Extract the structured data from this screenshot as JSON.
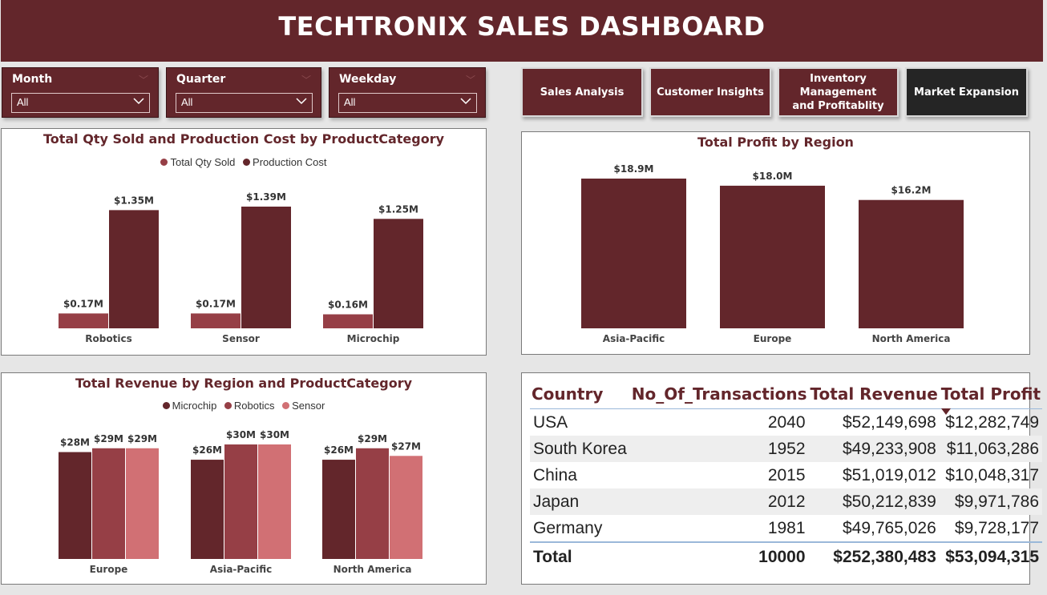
{
  "header": {
    "title": "TECHTRONIX SALES DASHBOARD"
  },
  "slicers": [
    {
      "title": "Month",
      "value": "All"
    },
    {
      "title": "Quarter",
      "value": "All"
    },
    {
      "title": "Weekday",
      "value": "All"
    }
  ],
  "nav": [
    {
      "label": "Sales Analysis",
      "active": false
    },
    {
      "label": "Customer Insights",
      "active": false
    },
    {
      "label": "Inventory Management and Profitablity",
      "active": false
    },
    {
      "label": "Market Expansion",
      "active": true
    }
  ],
  "chart_data": [
    {
      "type": "bar",
      "title": "Total Qty Sold and Production Cost by ProductCategory",
      "categories": [
        "Robotics",
        "Sensor",
        "Microchip"
      ],
      "series": [
        {
          "name": "Total Qty Sold",
          "values": [
            0.17,
            0.17,
            0.16
          ],
          "labels": [
            "$0.17M",
            "$0.17M",
            "$0.16M"
          ],
          "color": "#963f46"
        },
        {
          "name": "Production Cost",
          "values": [
            1.35,
            1.39,
            1.25
          ],
          "labels": [
            "$1.35M",
            "$1.39M",
            "$1.25M"
          ],
          "color": "#63262b"
        }
      ]
    },
    {
      "type": "bar",
      "title": "Total Profit by Region",
      "categories": [
        "Asia-Pacific",
        "Europe",
        "North America"
      ],
      "series": [
        {
          "name": "Total Profit",
          "values": [
            18.9,
            18.0,
            16.2
          ],
          "labels": [
            "$18.9M",
            "$18.0M",
            "$16.2M"
          ],
          "color": "#63262b"
        }
      ]
    },
    {
      "type": "bar",
      "title": "Total Revenue by Region and ProductCategory",
      "categories": [
        "Europe",
        "Asia-Pacific",
        "North America"
      ],
      "series": [
        {
          "name": "Microchip",
          "values": [
            28,
            26,
            26
          ],
          "labels": [
            "$28M",
            "$26M",
            "$26M"
          ],
          "color": "#63262b"
        },
        {
          "name": "Robotics",
          "values": [
            29,
            30,
            29
          ],
          "labels": [
            "$29M",
            "$30M",
            "$29M"
          ],
          "color": "#963f46"
        },
        {
          "name": "Sensor",
          "values": [
            29,
            30,
            27
          ],
          "labels": [
            "$29M",
            "$30M",
            "$27M"
          ],
          "color": "#d17074"
        }
      ]
    }
  ],
  "table": {
    "columns": [
      "Country",
      "No_Of_Transactions",
      "Total Revenue",
      "Total Profit"
    ],
    "rows": [
      [
        "USA",
        "2040",
        "$52,149,698",
        "$12,282,749"
      ],
      [
        "South Korea",
        "1952",
        "$49,233,908",
        "$11,063,286"
      ],
      [
        "China",
        "2015",
        "$51,019,012",
        "$10,048,317"
      ],
      [
        "Japan",
        "2012",
        "$50,212,839",
        "$9,971,786"
      ],
      [
        "Germany",
        "1981",
        "$49,765,026",
        "$9,728,177"
      ]
    ],
    "total": [
      "Total",
      "10000",
      "$252,380,483",
      "$53,094,315"
    ]
  }
}
